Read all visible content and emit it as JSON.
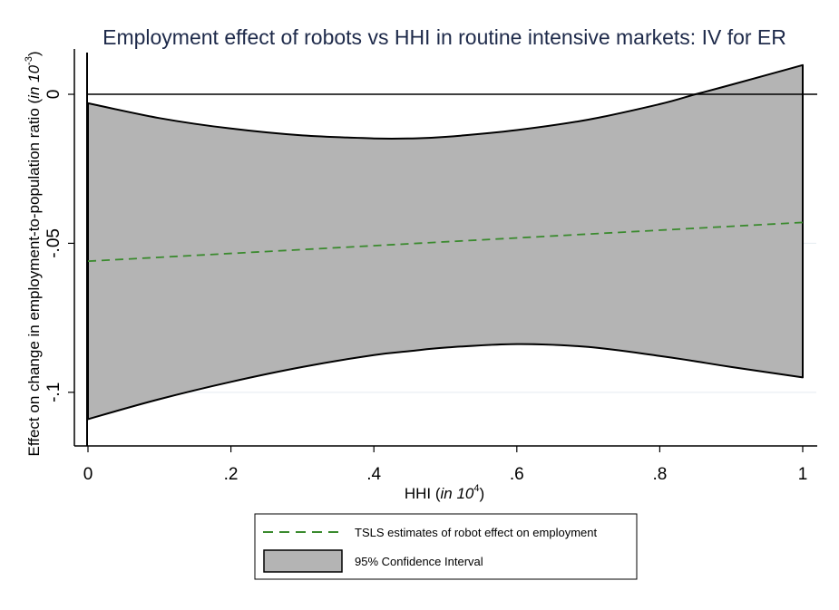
{
  "chart_data": {
    "type": "area",
    "title": "Employment effect of robots vs HHI in routine intensive markets: IV for ER",
    "xlabel": {
      "main": "HHI (",
      "italic": "in 10",
      "sup": "4",
      "close": ")"
    },
    "ylabel": {
      "main": "Effect on change in employment-to-population ratio (",
      "italic": "in 10",
      "sup": "-3",
      "close": ")"
    },
    "xlim": [
      0,
      1
    ],
    "ylim": [
      -0.118,
      0.014
    ],
    "x_ticks": [
      {
        "value": 0,
        "label": "0"
      },
      {
        "value": 0.2,
        "label": ".2"
      },
      {
        "value": 0.4,
        "label": ".4"
      },
      {
        "value": 0.6,
        "label": ".6"
      },
      {
        "value": 0.8,
        "label": ".8"
      },
      {
        "value": 1,
        "label": "1"
      }
    ],
    "y_ticks": [
      {
        "value": 0,
        "label": "0"
      },
      {
        "value": -0.05,
        "label": "-.05"
      },
      {
        "value": -0.1,
        "label": "-.1"
      }
    ],
    "reference_line_y": 0,
    "series": [
      {
        "name": "TSLS estimates of robot effect on employment",
        "kind": "line",
        "style": "dashed",
        "color": "#3a8a2e",
        "x": [
          0,
          1
        ],
        "y": [
          -0.056,
          -0.043
        ]
      },
      {
        "name": "95% Confidence Interval",
        "kind": "band",
        "color": "#b4b4b4",
        "x": [
          0,
          0.1,
          0.2,
          0.3,
          0.4,
          0.45,
          0.5,
          0.6,
          0.7,
          0.8,
          0.85,
          0.9,
          1.0
        ],
        "upper": [
          -0.003,
          -0.008,
          -0.0115,
          -0.0138,
          -0.0148,
          -0.0148,
          -0.0143,
          -0.012,
          -0.0085,
          -0.0033,
          0.0,
          0.0032,
          0.0098
        ],
        "lower": [
          -0.109,
          -0.1023,
          -0.0965,
          -0.0915,
          -0.0875,
          -0.0862,
          -0.085,
          -0.0838,
          -0.0848,
          -0.0878,
          -0.0896,
          -0.0915,
          -0.095
        ]
      }
    ],
    "legend_position": "bottom-center"
  },
  "colors": {
    "title": "#1e2a4a",
    "band_fill": "#b4b4b4",
    "estimate_line": "#3a8a2e",
    "gridline": "#e4ebf0"
  }
}
